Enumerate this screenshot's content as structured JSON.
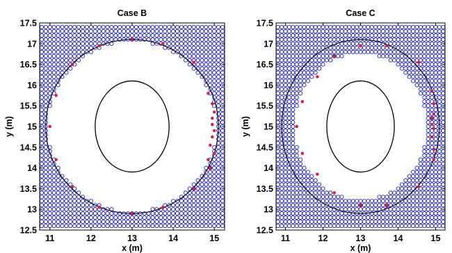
{
  "colors": {
    "grid_marker": "#2222c8",
    "highlight_marker": "#e8143a",
    "boundary": "#000000"
  },
  "chart_data": [
    {
      "type": "scatter",
      "title": "Case B",
      "xlabel": "x (m)",
      "ylabel": "y (m)",
      "xlim": [
        10.75,
        15.25
      ],
      "ylim": [
        12.5,
        17.5
      ],
      "xticks": [
        11,
        12,
        13,
        14,
        15
      ],
      "yticks": [
        12.5,
        13,
        13.5,
        14,
        14.5,
        15,
        15.5,
        16,
        16.5,
        17,
        17.5
      ],
      "grid": false,
      "grid_spacing": 0.1,
      "outer_circle": {
        "center": [
          13,
          15
        ],
        "radius": 2.1
      },
      "inner_ellipse": {
        "center": [
          13,
          15
        ],
        "rx": 0.9,
        "ry": 1.1
      },
      "interior_clearance_margin": 0.06,
      "highlight_points": [
        [
          13.0,
          17.1
        ],
        [
          13.75,
          17.0
        ],
        [
          12.2,
          16.95
        ],
        [
          14.5,
          16.55
        ],
        [
          11.55,
          16.5
        ],
        [
          11.15,
          15.75
        ],
        [
          14.85,
          15.8
        ],
        [
          14.95,
          15.55
        ],
        [
          15.0,
          15.35
        ],
        [
          14.95,
          15.2
        ],
        [
          14.95,
          15.05
        ],
        [
          15.0,
          14.9
        ],
        [
          14.95,
          14.75
        ],
        [
          14.9,
          14.55
        ],
        [
          15.0,
          14.35
        ],
        [
          11.0,
          15.0
        ],
        [
          11.15,
          14.2
        ],
        [
          14.85,
          14.2
        ],
        [
          14.9,
          14.0
        ],
        [
          11.55,
          13.55
        ],
        [
          14.5,
          13.5
        ],
        [
          12.2,
          13.05
        ],
        [
          13.75,
          13.05
        ],
        [
          13.0,
          12.9
        ]
      ]
    },
    {
      "type": "scatter",
      "title": "Case C",
      "xlabel": "x (m)",
      "ylabel": "y (m)",
      "xlim": [
        10.75,
        15.25
      ],
      "ylim": [
        12.5,
        17.5
      ],
      "xticks": [
        11,
        12,
        13,
        14,
        15
      ],
      "yticks": [
        12.5,
        13,
        13.5,
        14,
        14.5,
        15,
        15.5,
        16,
        16.5,
        17,
        17.5
      ],
      "grid": false,
      "grid_spacing": 0.1,
      "outer_circle": {
        "center": [
          13,
          15
        ],
        "radius": 2.1
      },
      "inner_ellipse": {
        "center": [
          13,
          15
        ],
        "rx": 0.9,
        "ry": 1.1
      },
      "interior_clearance_margin": 0.35,
      "highlight_points": [
        [
          13.0,
          16.95
        ],
        [
          13.7,
          16.95
        ],
        [
          12.3,
          16.7
        ],
        [
          14.55,
          16.55
        ],
        [
          11.85,
          16.2
        ],
        [
          11.45,
          15.6
        ],
        [
          14.9,
          15.85
        ],
        [
          14.95,
          15.55
        ],
        [
          14.95,
          15.3
        ],
        [
          14.9,
          15.2
        ],
        [
          14.9,
          15.05
        ],
        [
          14.95,
          14.95
        ],
        [
          14.9,
          14.75
        ],
        [
          14.95,
          14.45
        ],
        [
          14.95,
          14.2
        ],
        [
          11.3,
          15.0
        ],
        [
          11.45,
          14.35
        ],
        [
          11.85,
          13.85
        ],
        [
          14.55,
          13.55
        ],
        [
          12.3,
          13.4
        ],
        [
          13.0,
          13.1
        ],
        [
          13.7,
          13.1
        ]
      ]
    }
  ]
}
